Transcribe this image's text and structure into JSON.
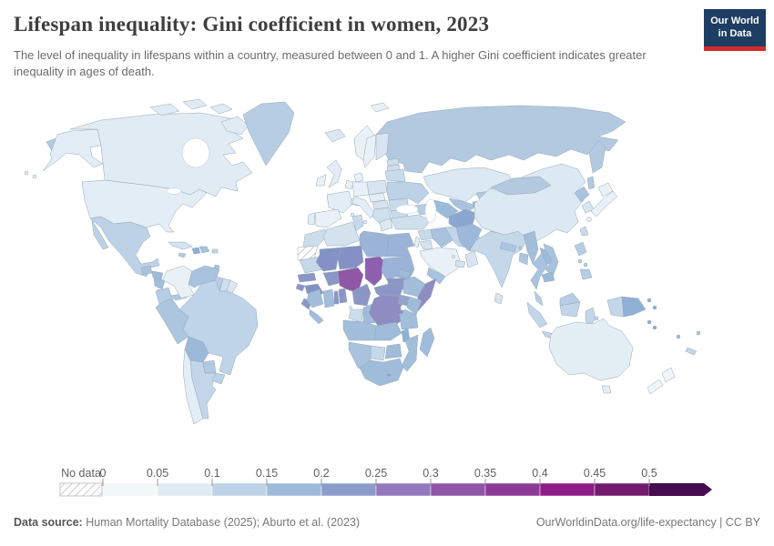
{
  "header": {
    "title": "Lifespan inequality: Gini coefficient in women, 2023",
    "subtitle": "The level of inequality in lifespans within a country, measured between 0 and 1. A higher Gini coefficient indicates greater inequality in ages of death.",
    "logo": {
      "line1": "Our World",
      "line2": "in Data",
      "bg": "#1d3d63",
      "accent": "#cf2d2d"
    }
  },
  "legend": {
    "no_data_label": "No data",
    "ticks": [
      "0",
      "0.05",
      "0.1",
      "0.15",
      "0.2",
      "0.25",
      "0.3",
      "0.35",
      "0.4",
      "0.45",
      "0.5"
    ],
    "bin_colors": [
      "#f1f8f7",
      "#dfeaf2",
      "#bed3e7",
      "#9dbbd9",
      "#8b9cca",
      "#9478bc",
      "#8f56a8",
      "#8c3a96",
      "#8d1d88",
      "#731a6e",
      "#450d50"
    ],
    "text_color": "#5f5f5f"
  },
  "footer": {
    "source_label": "Data source:",
    "source_text": " Human Mortality Database (2025); Aburto et al. (2023)",
    "link": "OurWorldinData.org/life-expectancy",
    "separator": " | ",
    "license": "CC BY"
  },
  "chart_data": {
    "type": "choropleth-map",
    "title": "Lifespan inequality: Gini coefficient in women, 2023",
    "year": 2023,
    "metric": "Gini coefficient of lifespan inequality (women), 0–1 scale",
    "legend_bins": [
      {
        "range": "0–0.05",
        "color": "#f1f8f7"
      },
      {
        "range": "0.05–0.1",
        "color": "#dfeaf2"
      },
      {
        "range": "0.1–0.15",
        "color": "#bed3e7"
      },
      {
        "range": "0.15–0.2",
        "color": "#9dbbd9"
      },
      {
        "range": "0.2–0.25",
        "color": "#8b9cca"
      },
      {
        "range": "0.25–0.3",
        "color": "#9478bc"
      },
      {
        "range": "0.3–0.35",
        "color": "#8f56a8"
      },
      {
        "range": "0.35–0.4",
        "color": "#8c3a96"
      },
      {
        "range": "0.4–0.45",
        "color": "#8d1d88"
      },
      {
        "range": "0.45–0.5",
        "color": "#731a6e"
      },
      {
        "range": "&gt;0.5",
        "color": "#450d50"
      }
    ],
    "regions": {
      "canada": [
        "Canada",
        "#e0ebf3",
        "0.05-0.1"
      ],
      "usa": [
        "United States",
        "#e3edf5",
        "0.05-0.1"
      ],
      "greenland": [
        "Greenland",
        "#b7cde4",
        "0.1-0.15"
      ],
      "mexico": [
        "Mexico",
        "#bdd2e6",
        "0.1-0.15"
      ],
      "guatemala": [
        "Guatemala",
        "#a9c3de",
        "0.1-0.15"
      ],
      "honduras": [
        "Honduras",
        "#9cbada",
        "0.15-0.2"
      ],
      "nicaragua": [
        "Nicaragua",
        "#a3bedb",
        "0.15-0.2"
      ],
      "costa-rica": [
        "Costa Rica",
        "#c3d6e9",
        "0.1-0.15"
      ],
      "panama": [
        "Panama",
        "#b1c9e1",
        "0.1-0.15"
      ],
      "cuba": [
        "Cuba",
        "#d4e3ef",
        "0.05-0.1"
      ],
      "jamaica": [
        "Jamaica",
        "#b1c9e1",
        "0.1-0.15"
      ],
      "haiti": [
        "Haiti",
        "#8fb0d4",
        "0.15-0.2"
      ],
      "dominican-republic": [
        "Dominican Republic",
        "#a9c3de",
        "0.1-0.15"
      ],
      "puerto-rico": [
        "Puerto Rico",
        "#c3d6e9",
        "0.1-0.15"
      ],
      "trinidad-and-tobago": [
        "Trinidad and Tobago",
        "#a9c3de",
        "0.1-0.15"
      ],
      "colombia": [
        "Colombia",
        "#e9f1f7",
        "0-0.05"
      ],
      "venezuela": [
        "Venezuela",
        "#a9c3de",
        "0.1-0.15"
      ],
      "guyana": [
        "Guyana",
        "#b7cde4",
        "0.1-0.15"
      ],
      "suriname": [
        "Suriname",
        "#cfdfec",
        "0.05-0.1"
      ],
      "french-guiana": [
        "French Guiana",
        "#dbe7f1",
        "0.05-0.1"
      ],
      "ecuador": [
        "Ecuador",
        "#b7cde4",
        "0.1-0.15"
      ],
      "peru": [
        "Peru",
        "#adc6df",
        "0.1-0.15"
      ],
      "brazil": [
        "Brazil",
        "#bfd4e8",
        "0.1-0.15"
      ],
      "bolivia": [
        "Bolivia",
        "#9cb9d9",
        "0.15-0.2"
      ],
      "paraguay": [
        "Paraguay",
        "#b1c9e1",
        "0.1-0.15"
      ],
      "chile": [
        "Chile",
        "#e3edf5",
        "0.05-0.1"
      ],
      "argentina": [
        "Argentina",
        "#c3d6e9",
        "0.1-0.15"
      ],
      "uruguay": [
        "Uruguay",
        "#bdd2e6",
        "0.1-0.15"
      ],
      "iceland": [
        "Iceland",
        "#dce8f1",
        "0.05-0.1"
      ],
      "norway": [
        "Norway",
        "#e9f1f7",
        "0-0.05"
      ],
      "sweden": [
        "Sweden",
        "#e9f1f7",
        "0-0.05"
      ],
      "finland": [
        "Finland",
        "#d8e5f0",
        "0.05-0.1"
      ],
      "denmark": [
        "Denmark",
        "#e9f1f7",
        "0-0.05"
      ],
      "united-kingdom": [
        "United Kingdom",
        "#e3edf5",
        "0.05-0.1"
      ],
      "ireland": [
        "Ireland",
        "#e9f1f7",
        "0-0.05"
      ],
      "estonia": [
        "Estonia",
        "#cfdfec",
        "0.05-0.1"
      ],
      "latvia": [
        "Latvia",
        "#cfdfec",
        "0.05-0.1"
      ],
      "lithuania": [
        "Lithuania",
        "#cfdfec",
        "0.05-0.1"
      ],
      "poland": [
        "Poland",
        "#d8e5f0",
        "0.05-0.1"
      ],
      "germany": [
        "Germany",
        "#e9f1f7",
        "0-0.05"
      ],
      "netherlands-belgium": [
        "Netherlands / Belgium",
        "#e9f1f7",
        "0-0.05"
      ],
      "france": [
        "France",
        "#e3edf5",
        "0.05-0.1"
      ],
      "portugal": [
        "Portugal",
        "#e3edf5",
        "0.05-0.1"
      ],
      "spain": [
        "Spain",
        "#e9f1f7",
        "0-0.05"
      ],
      "switzerland": [
        "Switzerland",
        "#e9f1f7",
        "0-0.05"
      ],
      "italy": [
        "Italy",
        "#e3edf5",
        "0.05-0.1"
      ],
      "austria-czechia": [
        "Austria / Czechia",
        "#e3edf5",
        "0.05-0.1"
      ],
      "hungary-slovakia": [
        "Hungary / Slovakia",
        "#d4e3ef",
        "0.05-0.1"
      ],
      "balkans": [
        "Balkans",
        "#cfdfec",
        "0.05-0.1"
      ],
      "greece": [
        "Greece",
        "#dce8f1",
        "0.05-0.1"
      ],
      "romania": [
        "Romania",
        "#c9dbea",
        "0.1-0.15"
      ],
      "bulgaria": [
        "Bulgaria",
        "#c9dbea",
        "0.1-0.15"
      ],
      "belarus": [
        "Belarus",
        "#c9dbea",
        "0.1-0.15"
      ],
      "ukraine": [
        "Ukraine",
        "#bdd2e6",
        "0.1-0.15"
      ],
      "russia": [
        "Russia",
        "#b3c9e0",
        "0.1-0.15"
      ],
      "kazakhstan": [
        "Kazakhstan",
        "#dce9f2",
        "0.05-0.1"
      ],
      "caucasus": [
        "Georgia / Armenia / Azerbaijan",
        "#b7cde4",
        "0.1-0.15"
      ],
      "turkey": [
        "Turkey",
        "#cfdfec",
        "0.05-0.1"
      ],
      "cyprus": [
        "Cyprus",
        "#dce8f1",
        "0.05-0.1"
      ],
      "syria": [
        "Syria",
        "#c9dbea",
        "0.1-0.15"
      ],
      "lebanon-israel": [
        "Lebanon / Israel",
        "#e3edf5",
        "0.05-0.1"
      ],
      "jordan": [
        "Jordan",
        "#d4e3ef",
        "0.05-0.1"
      ],
      "iraq": [
        "Iraq",
        "#a9c3de",
        "0.1-0.15"
      ],
      "iran": [
        "Iran",
        "#c3d6e9",
        "0.1-0.15"
      ],
      "kuwait": [
        "Kuwait",
        "#c3d6e9",
        "0.1-0.15"
      ],
      "saudi-arabia": [
        "Saudi Arabia",
        "#e9f1f7",
        "0-0.05"
      ],
      "qatar": [
        "Qatar",
        "#d4e3ef",
        "0.05-0.1"
      ],
      "uae": [
        "United Arab Emirates",
        "#d4e3ef",
        "0.05-0.1"
      ],
      "oman": [
        "Oman",
        "#d8e5f0",
        "0.05-0.1"
      ],
      "yemen": [
        "Yemen",
        "#a9c3de",
        "0.1-0.15"
      ],
      "uzbekistan": [
        "Uzbekistan",
        "#a9c3de",
        "0.1-0.15"
      ],
      "turkmenistan": [
        "Turkmenistan",
        "#9cbada",
        "0.15-0.2"
      ],
      "kyrgyzstan": [
        "Kyrgyzstan",
        "#b1c9e1",
        "0.1-0.15"
      ],
      "tajikistan": [
        "Tajikistan",
        "#9cbada",
        "0.15-0.2"
      ],
      "afghanistan": [
        "Afghanistan",
        "#8ba7cf",
        "0.2-0.25"
      ],
      "pakistan": [
        "Pakistan",
        "#9cb8da",
        "0.15-0.2"
      ],
      "india": [
        "India",
        "#c5d8e9",
        "0.1-0.15"
      ],
      "nepal": [
        "Nepal",
        "#adc6df",
        "0.1-0.15"
      ],
      "bhutan": [
        "Bhutan",
        "#b1c9e1",
        "0.1-0.15"
      ],
      "bangladesh": [
        "Bangladesh",
        "#adc6df",
        "0.1-0.15"
      ],
      "sri-lanka": [
        "Sri Lanka",
        "#d8e5f0",
        "0.05-0.1"
      ],
      "myanmar": [
        "Myanmar",
        "#a3bedb",
        "0.15-0.2"
      ],
      "thailand": [
        "Thailand",
        "#a9c3de",
        "0.1-0.15"
      ],
      "laos": [
        "Laos",
        "#9cbada",
        "0.15-0.2"
      ],
      "vietnam": [
        "Vietnam",
        "#a9c3de",
        "0.1-0.15"
      ],
      "cambodia": [
        "Cambodia",
        "#9cbada",
        "0.15-0.2"
      ],
      "malaysia": [
        "Malaysia",
        "#b7cde4",
        "0.1-0.15"
      ],
      "indonesia": [
        "Indonesia",
        "#c3d6e9",
        "0.1-0.15"
      ],
      "papua-new-guinea": [
        "Papua New Guinea",
        "#8fb0d4",
        "0.15-0.2"
      ],
      "philippines": [
        "Philippines",
        "#b7cde4",
        "0.1-0.15"
      ],
      "china": [
        "China",
        "#dde9f2",
        "0.05-0.1"
      ],
      "mongolia": [
        "Mongolia",
        "#b3c9e0",
        "0.1-0.15"
      ],
      "north-korea": [
        "North Korea",
        "#a9c3de",
        "0.1-0.15"
      ],
      "south-korea": [
        "South Korea",
        "#d8e5f0",
        "0.05-0.1"
      ],
      "japan": [
        "Japan",
        "#e9f1f7",
        "0-0.05"
      ],
      "taiwan": [
        "Taiwan",
        "#c9dbea",
        "0.1-0.15"
      ],
      "morocco": [
        "Morocco",
        "#ccdeec",
        "0.05-0.1"
      ],
      "western-sahara": [
        "Western Sahara",
        "nodata",
        "no data"
      ],
      "mauritania": [
        "Mauritania",
        "#c5d8e8",
        "0.1-0.15"
      ],
      "senegal": [
        "Senegal",
        "#8c96c6",
        "0.2-0.25"
      ],
      "guinea-bissau": [
        "Guinea-Bissau",
        "#8c96c6",
        "0.2-0.25"
      ],
      "guinea": [
        "Guinea",
        "#8591c4",
        "0.2-0.25"
      ],
      "sierra-leone": [
        "Sierra Leone",
        "#8c96c6",
        "0.2-0.25"
      ],
      "liberia": [
        "Liberia",
        "#a3bedb",
        "0.15-0.2"
      ],
      "algeria": [
        "Algeria",
        "#d4e2ee",
        "0.05-0.1"
      ],
      "tunisia": [
        "Tunisia",
        "#c9dbea",
        "0.1-0.15"
      ],
      "libya": [
        "Libya",
        "#9cb3d8",
        "0.15-0.2"
      ],
      "egypt": [
        "Egypt",
        "#9cb3d8",
        "0.15-0.2"
      ],
      "mali": [
        "Mali",
        "#8591c4",
        "0.2-0.25"
      ],
      "niger": [
        "Niger",
        "#8591c4",
        "0.2-0.25"
      ],
      "chad": [
        "Chad",
        "#8d5fae",
        "0.3-0.35"
      ],
      "sudan": [
        "Sudan",
        "#9cb3d8",
        "0.15-0.2"
      ],
      "south-sudan": [
        "South Sudan",
        "#8c96c6",
        "0.2-0.25"
      ],
      "eritrea": [
        "Eritrea",
        "#9fbcda",
        "0.15-0.2"
      ],
      "djibouti": [
        "Djibouti",
        "#9fbcda",
        "0.15-0.2"
      ],
      "ethiopia": [
        "Ethiopia",
        "#a3bedb",
        "0.15-0.2"
      ],
      "somalia": [
        "Somalia",
        "#8f8cc2",
        "0.2-0.25"
      ],
      "burkina-faso": [
        "Burkina Faso",
        "#8c96c6",
        "0.2-0.25"
      ],
      "ivory-coast": [
        "Cote d'Ivoire",
        "#a3bedb",
        "0.15-0.2"
      ],
      "ghana": [
        "Ghana",
        "#a3bedb",
        "0.15-0.2"
      ],
      "togo": [
        "Togo",
        "#8c96c6",
        "0.2-0.25"
      ],
      "benin": [
        "Benin",
        "#8c96c6",
        "0.2-0.25"
      ],
      "nigeria": [
        "Nigeria",
        "#9057a7",
        "0.3-0.35"
      ],
      "cameroon": [
        "Cameroon",
        "#8c96c6",
        "0.2-0.25"
      ],
      "central-african-republic": [
        "Central African Republic",
        "#8c96c6",
        "0.2-0.25"
      ],
      "equatorial-guinea": [
        "Equatorial Guinea",
        "#dce8f1",
        "0.05-0.1"
      ],
      "gabon": [
        "Gabon",
        "#ccdeec",
        "0.05-0.1"
      ],
      "congo": [
        "Congo",
        "#9fbcda",
        "0.15-0.2"
      ],
      "drc": [
        "Democratic Republic of Congo",
        "#8f8cc2",
        "0.2-0.25"
      ],
      "uganda": [
        "Uganda",
        "#95a3cb",
        "0.2-0.25"
      ],
      "kenya": [
        "Kenya",
        "#9fbcda",
        "0.15-0.2"
      ],
      "rwanda": [
        "Rwanda",
        "#9fbcda",
        "0.15-0.2"
      ],
      "burundi": [
        "Burundi",
        "#9fbcda",
        "0.15-0.2"
      ],
      "tanzania": [
        "Tanzania",
        "#a3bedb",
        "0.15-0.2"
      ],
      "angola": [
        "Angola",
        "#a3bedb",
        "0.15-0.2"
      ],
      "zambia": [
        "Zambia",
        "#9fbcda",
        "0.15-0.2"
      ],
      "malawi": [
        "Malawi",
        "#8fb0d4",
        "0.15-0.2"
      ],
      "mozambique": [
        "Mozambique",
        "#a3bedb",
        "0.15-0.2"
      ],
      "zimbabwe": [
        "Zimbabwe",
        "#9fbcda",
        "0.15-0.2"
      ],
      "botswana": [
        "Botswana",
        "#c5d8e8",
        "0.1-0.15"
      ],
      "namibia": [
        "Namibia",
        "#a9c3de",
        "0.1-0.15"
      ],
      "south-africa": [
        "South Africa",
        "#9fbcda",
        "0.15-0.2"
      ],
      "lesotho": [
        "Lesotho",
        "#8c96c6",
        "0.2-0.25"
      ],
      "madagascar": [
        "Madagascar",
        "#9fbcda",
        "0.15-0.2"
      ],
      "australia": [
        "Australia",
        "#e4eef5",
        "0.05-0.1"
      ],
      "new-zealand": [
        "New Zealand",
        "#eff5f8",
        "0-0.05"
      ],
      "solomon-islands": [
        "Solomon Islands",
        "#8fb0d4",
        "0.15-0.2"
      ],
      "vanuatu": [
        "Vanuatu",
        "#9fbcda",
        "0.15-0.2"
      ],
      "fiji": [
        "Fiji",
        "#a9c3de",
        "0.1-0.15"
      ],
      "new-caledonia": [
        "New Caledonia",
        "#c3d6e9",
        "0.1-0.15"
      ]
    }
  }
}
